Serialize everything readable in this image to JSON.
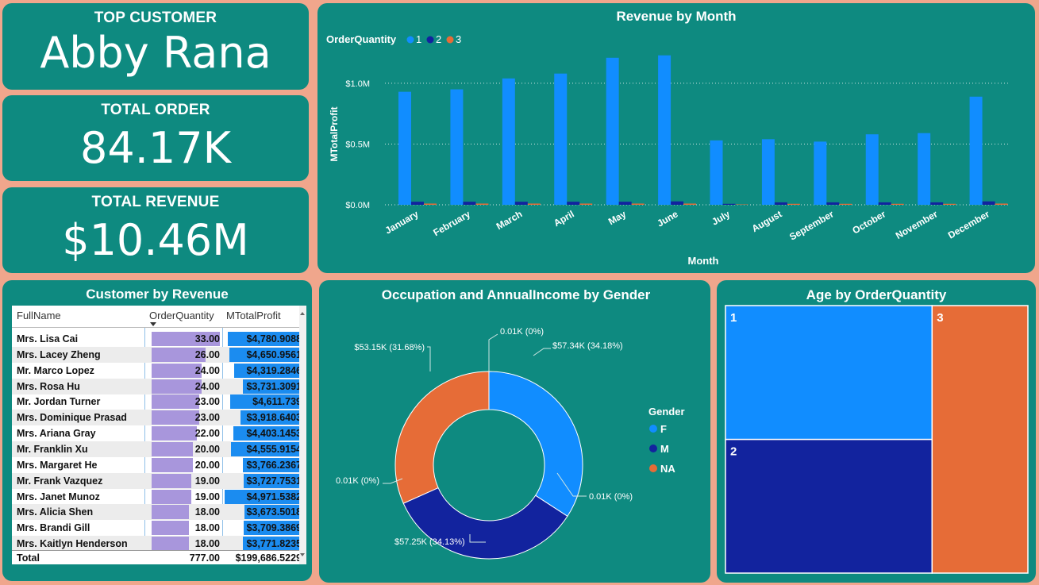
{
  "kpis": {
    "top_customer": {
      "title": "TOP CUSTOMER",
      "value": "Abby Rana"
    },
    "total_order": {
      "title": "TOTAL ORDER",
      "value": "84.17K"
    },
    "total_revenue": {
      "title": "TOTAL REVENUE",
      "value": "$10.46M"
    }
  },
  "colors": {
    "series1": "#118dff",
    "series2": "#12239e",
    "series3": "#e66c37",
    "panel": "#0e8a80",
    "background": "#f0a68c"
  },
  "revenue_chart": {
    "title": "Revenue by Month",
    "legend_title": "OrderQuantity",
    "y_ticks": [
      "$0.0M",
      "$0.5M",
      "$1.0M"
    ]
  },
  "table": {
    "title": "Customer by Revenue",
    "headers": [
      "FullName",
      "OrderQuantity",
      "MTotalProfit"
    ],
    "rows": [
      {
        "name": "Mrs. Lisa Cai",
        "qty": "33.00",
        "profit": "$4,780.9088"
      },
      {
        "name": "Mrs. Lacey Zheng",
        "qty": "26.00",
        "profit": "$4,650.9561"
      },
      {
        "name": "Mr. Marco Lopez",
        "qty": "24.00",
        "profit": "$4,319.2846"
      },
      {
        "name": "Mrs. Rosa Hu",
        "qty": "24.00",
        "profit": "$3,731.3091"
      },
      {
        "name": "Mr. Jordan Turner",
        "qty": "23.00",
        "profit": "$4,611.739"
      },
      {
        "name": "Mrs. Dominique Prasad",
        "qty": "23.00",
        "profit": "$3,918.6403"
      },
      {
        "name": "Mrs. Ariana Gray",
        "qty": "22.00",
        "profit": "$4,403.1453"
      },
      {
        "name": "Mr. Franklin Xu",
        "qty": "20.00",
        "profit": "$4,555.9154"
      },
      {
        "name": "Mrs. Margaret He",
        "qty": "20.00",
        "profit": "$3,766.2367"
      },
      {
        "name": "Mr. Frank Vazquez",
        "qty": "19.00",
        "profit": "$3,727.7531"
      },
      {
        "name": "Mrs. Janet Munoz",
        "qty": "19.00",
        "profit": "$4,971.5382"
      },
      {
        "name": "Mrs. Alicia Shen",
        "qty": "18.00",
        "profit": "$3,673.5018"
      },
      {
        "name": "Mrs. Brandi Gill",
        "qty": "18.00",
        "profit": "$3,709.3869"
      },
      {
        "name": "Mrs. Kaitlyn Henderson",
        "qty": "18.00",
        "profit": "$3,771.8235"
      }
    ],
    "total": {
      "label": "Total",
      "qty": "777.00",
      "profit": "$199,686.5229"
    }
  },
  "donut": {
    "title": "Occupation and AnnualIncome by Gender",
    "legend_title": "Gender"
  },
  "treemap": {
    "title": "Age by OrderQuantity"
  },
  "chart_data": [
    {
      "type": "bar",
      "title": "Revenue by Month",
      "xlabel": "Month",
      "ylabel": "MTotalProfit",
      "categories": [
        "January",
        "February",
        "March",
        "April",
        "May",
        "June",
        "July",
        "August",
        "September",
        "October",
        "November",
        "December"
      ],
      "series": [
        {
          "name": "1",
          "values": [
            0.93,
            0.95,
            1.04,
            1.08,
            1.21,
            1.23,
            0.53,
            0.54,
            0.52,
            0.58,
            0.59,
            0.89
          ]
        },
        {
          "name": "2",
          "values": [
            0.025,
            0.025,
            0.025,
            0.025,
            0.025,
            0.028,
            0.008,
            0.02,
            0.02,
            0.02,
            0.02,
            0.028
          ]
        },
        {
          "name": "3",
          "values": [
            0.01,
            0.01,
            0.01,
            0.01,
            0.01,
            0.01,
            0.003,
            0.008,
            0.008,
            0.008,
            0.008,
            0.01
          ]
        }
      ],
      "ylim": [
        0,
        1.3
      ],
      "grid": true,
      "legend": "top-left"
    },
    {
      "type": "pie",
      "title": "Occupation and AnnualIncome by Gender",
      "donut": true,
      "slices": [
        {
          "name": "F",
          "value": 57.34,
          "label": "$57.34K (34.18%)"
        },
        {
          "name": "",
          "value": 0.01,
          "label": "0.01K (0%)"
        },
        {
          "name": "M",
          "value": 57.25,
          "label": "$57.25K (34.13%)"
        },
        {
          "name": "",
          "value": 0.01,
          "label": "0.01K (0%)"
        },
        {
          "name": "NA",
          "value": 53.15,
          "label": "$53.15K (31.68%)"
        },
        {
          "name": "",
          "value": 0.01,
          "label": "0.01K (0%)"
        }
      ],
      "legend": [
        "F",
        "M",
        "NA"
      ],
      "legend_placement": "right"
    },
    {
      "type": "treemap",
      "title": "Age by OrderQuantity",
      "items": [
        {
          "name": "1",
          "value": 34.18
        },
        {
          "name": "2",
          "value": 34.13
        },
        {
          "name": "3",
          "value": 31.68
        }
      ]
    }
  ]
}
